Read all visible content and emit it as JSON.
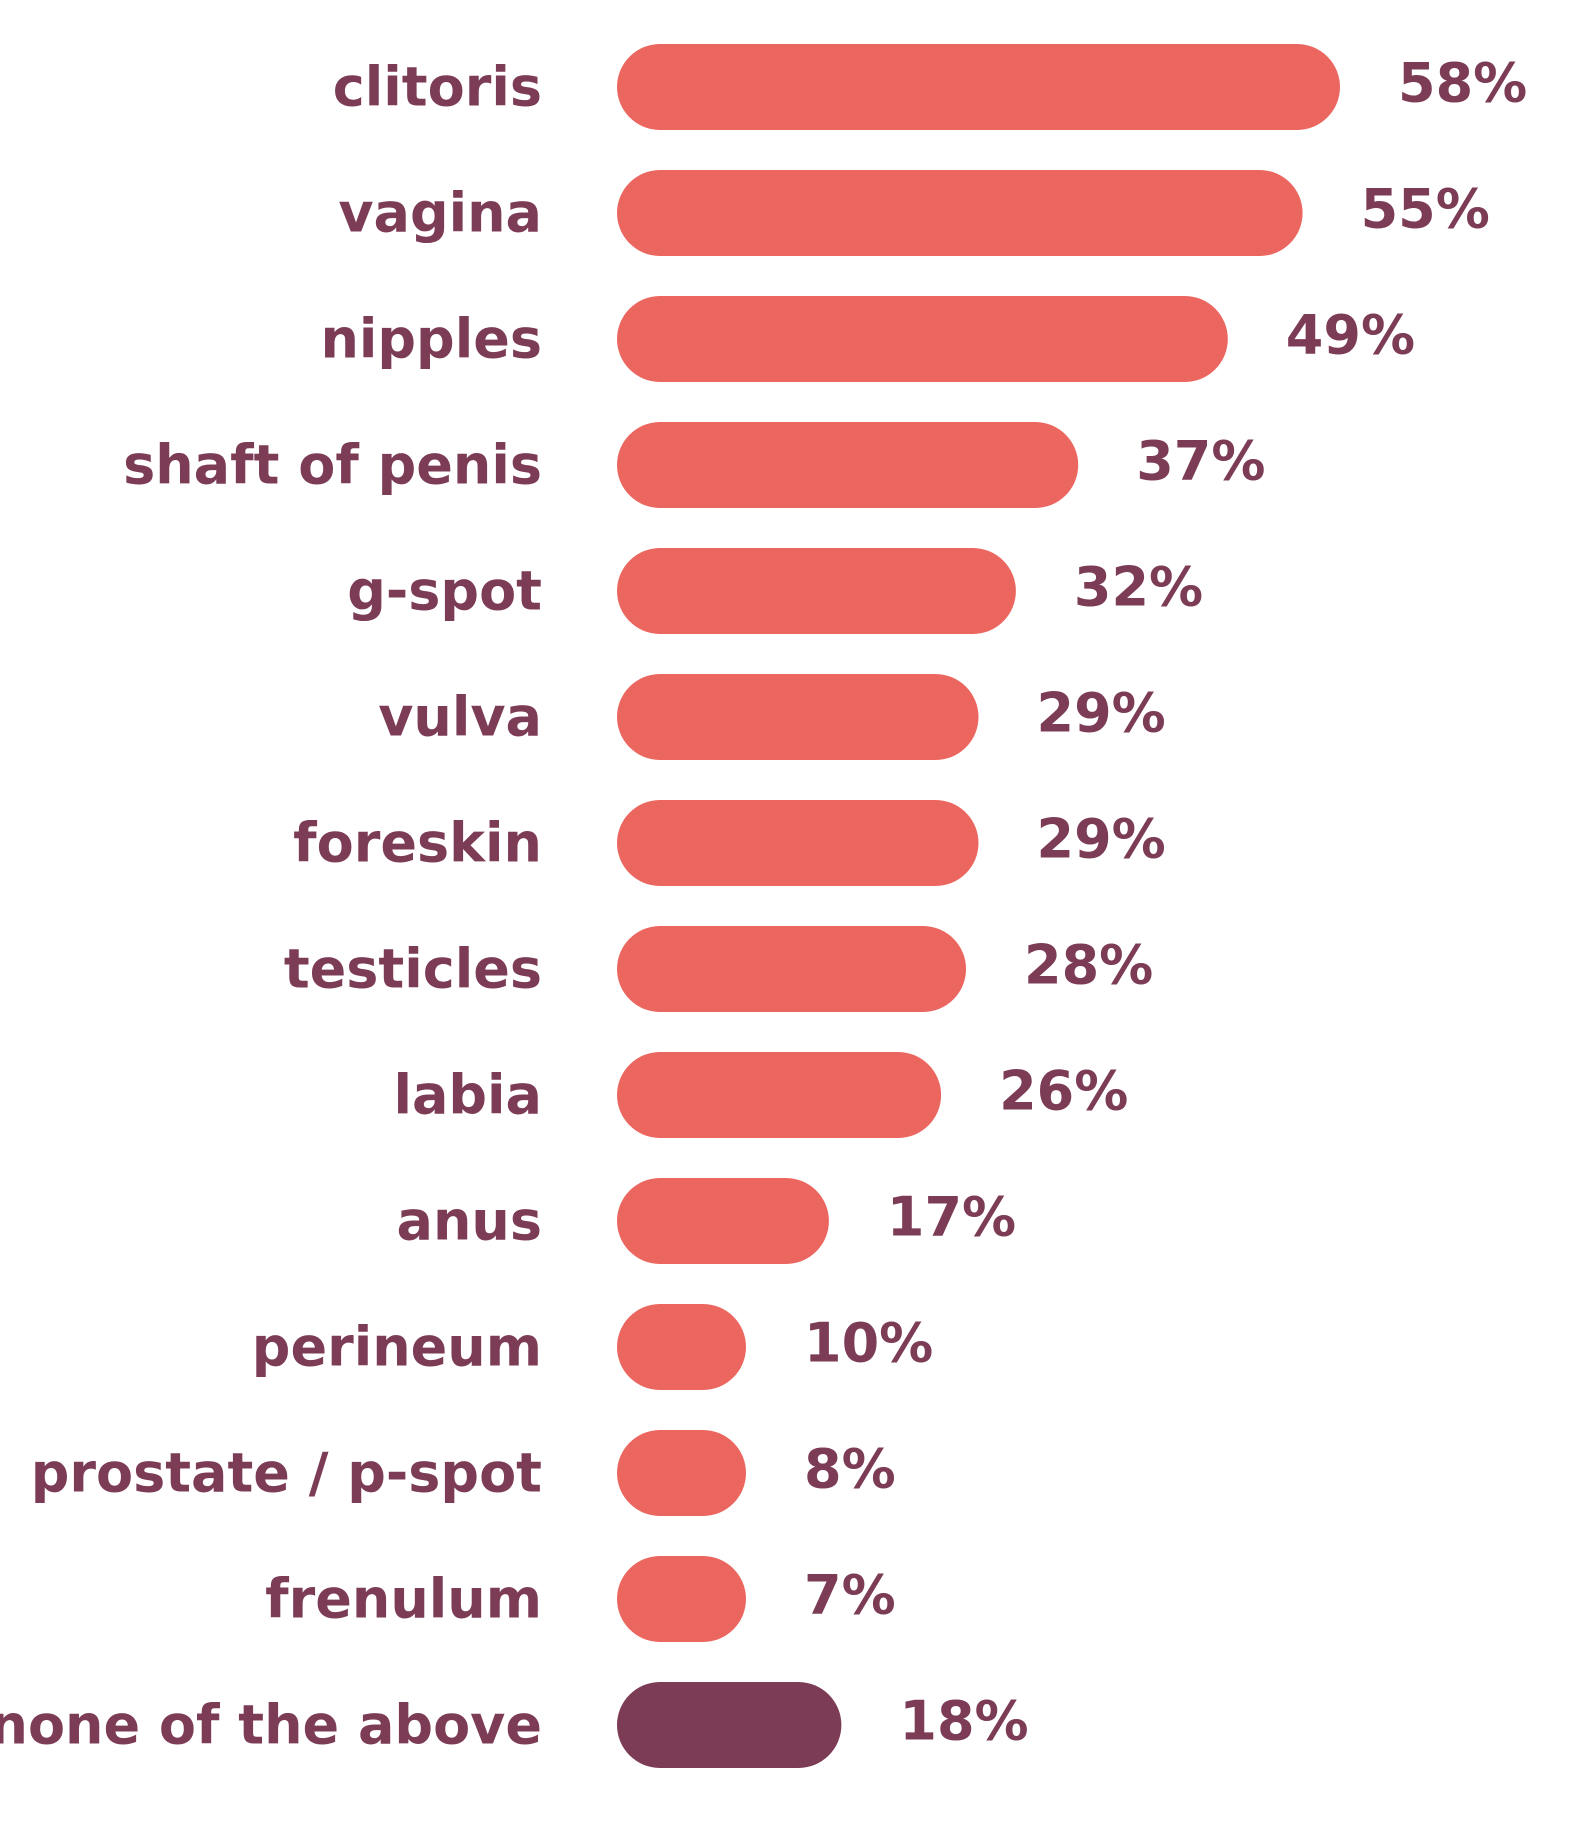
{
  "colors": {
    "bar": "#ec6660",
    "highlight_bar": "#7d3c56",
    "text": "#7d3c56",
    "background": "#ffffff"
  },
  "chart_data": {
    "type": "bar",
    "orientation": "horizontal",
    "title": "",
    "xlabel": "",
    "ylabel": "",
    "xlim": [
      0,
      58
    ],
    "grid": false,
    "legend": "none",
    "categories": [
      "clitoris",
      "vagina",
      "nipples",
      "shaft of penis",
      "g-spot",
      "vulva",
      "foreskin",
      "testicles",
      "labia",
      "anus",
      "perineum",
      "prostate / p-spot",
      "frenulum",
      "none of the above"
    ],
    "values": [
      58,
      55,
      49,
      37,
      32,
      29,
      29,
      28,
      26,
      17,
      10,
      8,
      7,
      18
    ],
    "value_labels": [
      "58%",
      "55%",
      "49%",
      "37%",
      "32%",
      "29%",
      "29%",
      "28%",
      "26%",
      "17%",
      "10%",
      "8%",
      "7%",
      "18%"
    ],
    "highlighted_categories": [
      "none of the above"
    ]
  }
}
